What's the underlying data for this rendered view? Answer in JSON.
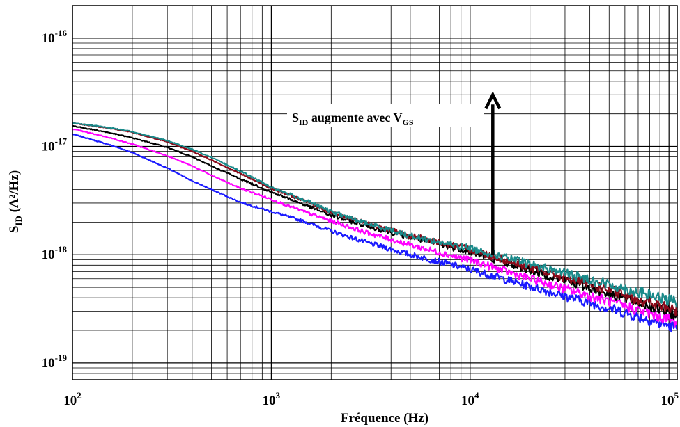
{
  "chart_data": {
    "type": "line",
    "title": "",
    "xlabel": "Fréquence (Hz)",
    "ylabel": "S_ID (A²/Hz)",
    "xscale": "log",
    "yscale": "log",
    "xlim": [
      100,
      110000
    ],
    "ylim": [
      7e-20,
      2e-16
    ],
    "grid": true,
    "x_ticks": [
      {
        "base": "10",
        "exp": "2",
        "value": 100
      },
      {
        "base": "10",
        "exp": "3",
        "value": 1000
      },
      {
        "base": "10",
        "exp": "4",
        "value": 10000
      },
      {
        "base": "10",
        "exp": "5",
        "value": 100000
      }
    ],
    "y_ticks": [
      {
        "base": "10",
        "exp": "-16",
        "value": 1e-16
      },
      {
        "base": "10",
        "exp": "-17",
        "value": 1e-17
      },
      {
        "base": "10",
        "exp": "-18",
        "value": 1e-18
      },
      {
        "base": "10",
        "exp": "-19",
        "value": 1e-19
      }
    ],
    "annotation": {
      "text_main": "S",
      "text_sub1": "ID",
      "text_mid": " augmente avec V",
      "text_sub2": "GS",
      "arrow_x": 13000,
      "arrow_from_y": 1e-18,
      "arrow_to_y": 3e-17
    },
    "series": [
      {
        "color": "#1a1aff",
        "x": [
          100,
          150,
          200,
          300,
          400,
          500,
          700,
          1000,
          1500,
          2000,
          3000,
          5000,
          7000,
          10000,
          20000,
          50000,
          110000
        ],
        "y": [
          1.3e-17,
          1.05e-17,
          8.8e-18,
          6.3e-18,
          4.8e-18,
          4e-18,
          3.05e-18,
          2.5e-18,
          2e-18,
          1.65e-18,
          1.3e-18,
          1e-18,
          8.6e-19,
          7.3e-19,
          5.1e-19,
          3.2e-19,
          2.1e-19
        ]
      },
      {
        "color": "#ff00ff",
        "x": [
          100,
          150,
          200,
          300,
          400,
          500,
          700,
          1000,
          1500,
          2000,
          3000,
          5000,
          7000,
          10000,
          20000,
          50000,
          110000
        ],
        "y": [
          1.45e-17,
          1.22e-17,
          1.05e-17,
          8.2e-18,
          6.6e-18,
          5.4e-18,
          4.1e-18,
          3.25e-18,
          2.45e-18,
          2.05e-18,
          1.6e-18,
          1.23e-18,
          1.05e-18,
          8.9e-19,
          6e-19,
          3.7e-19,
          2.4e-19
        ]
      },
      {
        "color": "#000000",
        "x": [
          100,
          150,
          200,
          300,
          400,
          500,
          700,
          1000,
          1500,
          2000,
          3000,
          5000,
          7000,
          10000,
          20000,
          50000,
          110000
        ],
        "y": [
          1.55e-17,
          1.35e-17,
          1.2e-17,
          9.8e-18,
          8e-18,
          6.6e-18,
          5e-18,
          3.8e-18,
          2.85e-18,
          2.3e-18,
          1.85e-18,
          1.45e-18,
          1.25e-18,
          1.07e-18,
          7.2e-19,
          4.4e-19,
          2.8e-19
        ]
      },
      {
        "color": "#8b0a1a",
        "x": [
          100,
          150,
          200,
          300,
          400,
          500,
          700,
          1000,
          1500,
          2000,
          3000,
          5000,
          7000,
          10000,
          20000,
          50000,
          110000
        ],
        "y": [
          1.65e-17,
          1.48e-17,
          1.35e-17,
          1.1e-17,
          9e-18,
          7.5e-18,
          5.6e-18,
          4.1e-18,
          3.1e-18,
          2.45e-18,
          1.95e-18,
          1.5e-18,
          1.3e-18,
          1.12e-18,
          7.6e-19,
          4.7e-19,
          3e-19
        ]
      },
      {
        "color": "#1a8a8a",
        "x": [
          100,
          150,
          200,
          300,
          400,
          500,
          700,
          1000,
          1500,
          2000,
          3000,
          5000,
          7000,
          10000,
          20000,
          50000,
          110000
        ],
        "y": [
          1.65e-17,
          1.5e-17,
          1.37e-17,
          1.13e-17,
          9.4e-18,
          7.9e-18,
          5.9e-18,
          4.2e-18,
          3.15e-18,
          2.5e-18,
          1.95e-18,
          1.5e-18,
          1.3e-18,
          1.15e-18,
          8.2e-19,
          5.3e-19,
          3.6e-19
        ]
      }
    ]
  }
}
